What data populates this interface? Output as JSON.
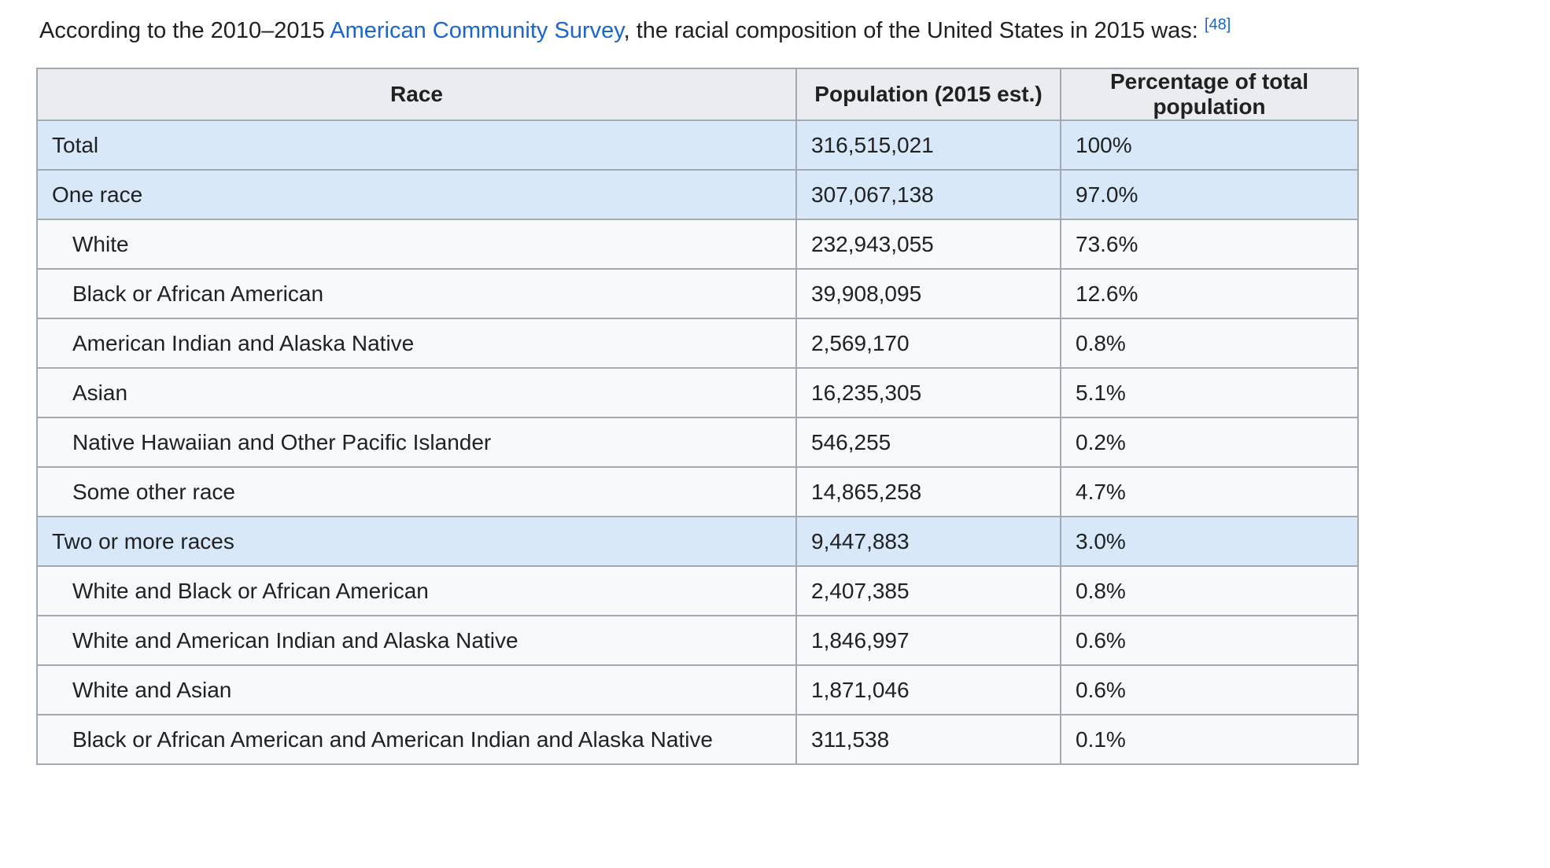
{
  "intro": {
    "text_before_link": "According to the 2010–2015 ",
    "link_text": "American Community Survey",
    "text_after_link": ", the racial composition of the United States in 2015 was: ",
    "citation": "[48]"
  },
  "table": {
    "headers": [
      "Race",
      "Population (2015 est.)",
      "Percentage of total population"
    ],
    "rows": [
      {
        "race": "Total",
        "population": "316,515,021",
        "percentage": "100%",
        "highlight": true,
        "indent": false
      },
      {
        "race": "One race",
        "population": "307,067,138",
        "percentage": "97.0%",
        "highlight": true,
        "indent": false
      },
      {
        "race": "White",
        "population": "232,943,055",
        "percentage": "73.6%",
        "highlight": false,
        "indent": true
      },
      {
        "race": "Black or African American",
        "population": "39,908,095",
        "percentage": "12.6%",
        "highlight": false,
        "indent": true
      },
      {
        "race": "American Indian and Alaska Native",
        "population": "2,569,170",
        "percentage": "0.8%",
        "highlight": false,
        "indent": true
      },
      {
        "race": "Asian",
        "population": "16,235,305",
        "percentage": "5.1%",
        "highlight": false,
        "indent": true
      },
      {
        "race": "Native Hawaiian and Other Pacific Islander",
        "population": "546,255",
        "percentage": "0.2%",
        "highlight": false,
        "indent": true
      },
      {
        "race": "Some other race",
        "population": "14,865,258",
        "percentage": "4.7%",
        "highlight": false,
        "indent": true
      },
      {
        "race": "Two or more races",
        "population": "9,447,883",
        "percentage": "3.0%",
        "highlight": true,
        "indent": false
      },
      {
        "race": "White and Black or African American",
        "population": "2,407,385",
        "percentage": "0.8%",
        "highlight": false,
        "indent": true
      },
      {
        "race": "White and American Indian and Alaska Native",
        "population": "1,846,997",
        "percentage": "0.6%",
        "highlight": false,
        "indent": true
      },
      {
        "race": "White and Asian",
        "population": "1,871,046",
        "percentage": "0.6%",
        "highlight": false,
        "indent": true
      },
      {
        "race": "Black or African American and American Indian and Alaska Native",
        "population": "311,538",
        "percentage": "0.1%",
        "highlight": false,
        "indent": true
      }
    ]
  },
  "colors": {
    "highlight_row": "#d8e8f8",
    "default_row": "#f8f9fa",
    "header_bg": "#eaecf0",
    "border": "#a2a9b1",
    "link": "#1a66cc",
    "text": "#202122"
  },
  "chart_data": {
    "type": "table",
    "title": "Racial composition of the United States in 2015 (2010–2015 American Community Survey)",
    "columns": [
      "Race",
      "Population (2015 est.)",
      "Percentage of total population"
    ],
    "rows": [
      [
        "Total",
        316515021,
        "100%"
      ],
      [
        "One race",
        307067138,
        "97.0%"
      ],
      [
        "White",
        232943055,
        "73.6%"
      ],
      [
        "Black or African American",
        39908095,
        "12.6%"
      ],
      [
        "American Indian and Alaska Native",
        2569170,
        "0.8%"
      ],
      [
        "Asian",
        16235305,
        "5.1%"
      ],
      [
        "Native Hawaiian and Other Pacific Islander",
        546255,
        "0.2%"
      ],
      [
        "Some other race",
        14865258,
        "4.7%"
      ],
      [
        "Two or more races",
        9447883,
        "3.0%"
      ],
      [
        "White and Black or African American",
        2407385,
        "0.8%"
      ],
      [
        "White and American Indian and Alaska Native",
        1846997,
        "0.6%"
      ],
      [
        "White and Asian",
        1871046,
        "0.6%"
      ],
      [
        "Black or African American and American Indian and Alaska Native",
        311538,
        "0.1%"
      ]
    ]
  }
}
